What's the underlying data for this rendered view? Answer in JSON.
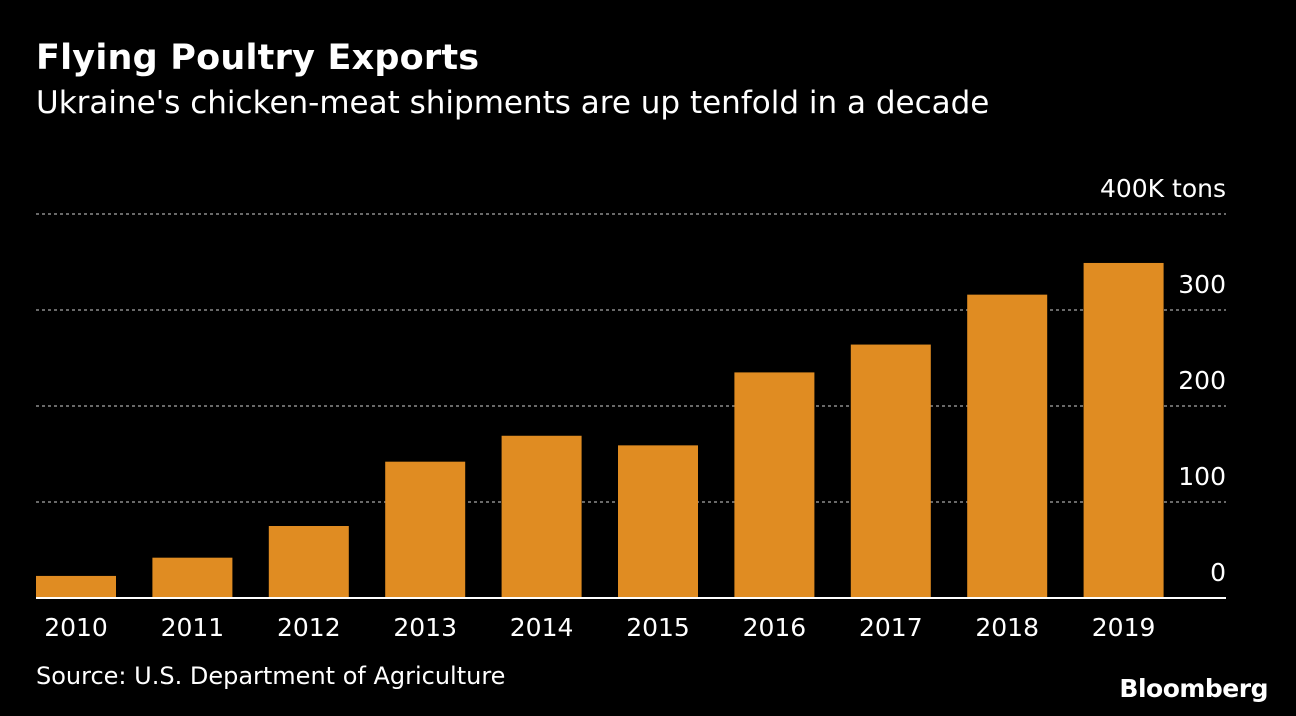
{
  "title": "Flying Poultry Exports",
  "subtitle": "Ukraine's chicken-meat shipments are up tenfold in a decade",
  "source": "Source: U.S. Department of Agriculture",
  "brand": "Bloomberg",
  "colors": {
    "background": "#000000",
    "bar": "#e08c22",
    "text": "#ffffff",
    "grid": "#8c8c8c"
  },
  "chart_data": {
    "type": "bar",
    "categories": [
      "2010",
      "2011",
      "2012",
      "2013",
      "2014",
      "2015",
      "2016",
      "2017",
      "2018",
      "2019"
    ],
    "values": [
      23,
      42,
      75,
      142,
      169,
      159,
      235,
      264,
      316,
      349
    ],
    "unit": "K tons",
    "ylim": [
      0,
      400
    ],
    "yticks": [
      0,
      100,
      200,
      300,
      400
    ],
    "ytick_labels": [
      "0",
      "100",
      "200",
      "300",
      "400K tons"
    ],
    "grid": true,
    "legend": "none",
    "y_axis_side": "right"
  }
}
